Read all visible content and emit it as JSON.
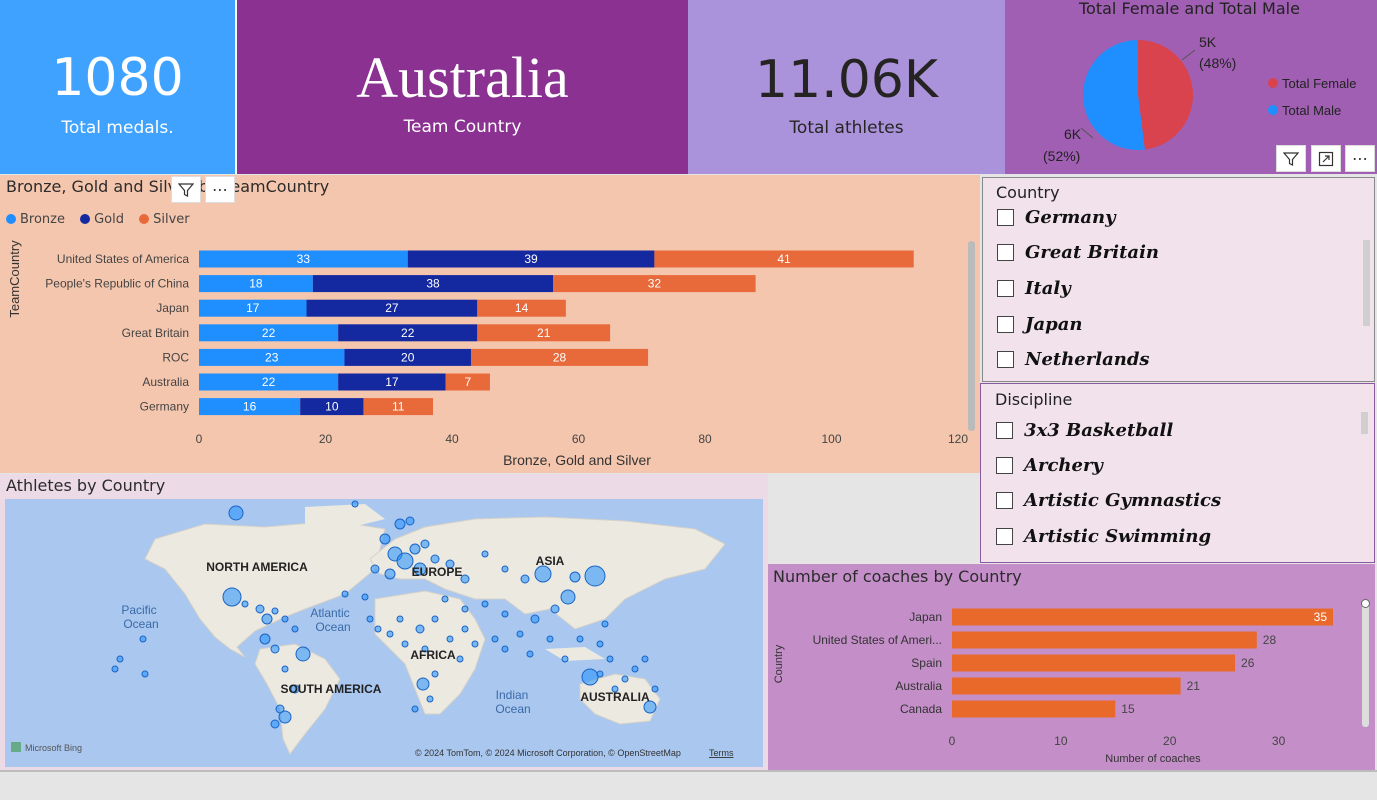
{
  "cards": {
    "medals": {
      "value": "1080",
      "label": "Total medals."
    },
    "team": {
      "value": "Australia",
      "label": "Team Country"
    },
    "athletes": {
      "value": "11.06K",
      "label": "Total athletes"
    }
  },
  "pie": {
    "title": "Total Female and Total Male",
    "female_label_value": "5K",
    "female_label_pct": "(48%)",
    "male_label_value": "6K",
    "male_label_pct": "(52%)",
    "legend_female": "Total Female",
    "legend_male": "Total Male"
  },
  "medals_chart": {
    "title": "Bronze, Gold and Silver by TeamCountry",
    "legend": [
      "Bronze",
      "Gold",
      "Silver"
    ],
    "ylabel": "TeamCountry",
    "xlabel": "Bronze, Gold and Silver"
  },
  "map": {
    "title": "Athletes by Country",
    "labels": {
      "north_america": "NORTH AMERICA",
      "south_america": "SOUTH AMERICA",
      "europe": "EUROPE",
      "asia": "ASIA",
      "africa": "AFRICA",
      "australia": "AUSTRALIA",
      "pacific_1": "Pacific",
      "pacific_2": "Ocean",
      "atlantic_1": "Atlantic",
      "atlantic_2": "Ocean",
      "indian_1": "Indian",
      "indian_2": "Ocean"
    },
    "bing": "Microsoft Bing",
    "copyright": "© 2024 TomTom, © 2024 Microsoft Corporation, © OpenStreetMap",
    "terms": "Terms"
  },
  "country_slicer": {
    "title": "Country",
    "items": [
      "Germany",
      "Great Britain",
      "Italy",
      "Japan",
      "Netherlands"
    ]
  },
  "discipline_slicer": {
    "title": "Discipline",
    "items": [
      "3x3 Basketball",
      "Archery",
      "Artistic Gymnastics",
      "Artistic Swimming"
    ]
  },
  "coaches_chart": {
    "title": "Number of coaches by Country",
    "ylabel": "Country",
    "xlabel": "Number of coaches"
  },
  "colors": {
    "bronze": "#1f8fff",
    "gold": "#1428a0",
    "silver": "#e8693a",
    "female": "#d9434e",
    "male": "#1f8fff",
    "coaches": "#e8692a"
  },
  "chart_data": [
    {
      "type": "bar",
      "orientation": "horizontal",
      "stacked": true,
      "title": "Bronze, Gold and Silver by TeamCountry",
      "xlabel": "Bronze, Gold and Silver",
      "ylabel": "TeamCountry",
      "categories": [
        "United States of America",
        "People's Republic of China",
        "Japan",
        "Great Britain",
        "ROC",
        "Australia",
        "Germany"
      ],
      "series": [
        {
          "name": "Bronze",
          "values": [
            33,
            18,
            17,
            22,
            23,
            22,
            16
          ]
        },
        {
          "name": "Gold",
          "values": [
            39,
            38,
            27,
            22,
            20,
            17,
            10
          ]
        },
        {
          "name": "Silver",
          "values": [
            41,
            32,
            14,
            21,
            28,
            7,
            11
          ]
        }
      ],
      "xlim": [
        0,
        120
      ],
      "xticks": [
        0,
        20,
        40,
        60,
        80,
        100,
        120
      ],
      "legend": "top-left"
    },
    {
      "type": "pie",
      "title": "Total Female and Total Male",
      "labels": [
        "Total Female",
        "Total Male"
      ],
      "values": [
        5,
        6
      ],
      "percent": [
        48,
        52
      ],
      "value_labels": [
        "5K",
        "6K"
      ],
      "legend": "right"
    },
    {
      "type": "bar",
      "orientation": "horizontal",
      "title": "Number of coaches by Country",
      "xlabel": "Number of coaches",
      "ylabel": "Country",
      "categories": [
        "Japan",
        "United States of Ameri...",
        "Spain",
        "Australia",
        "Canada"
      ],
      "values": [
        35,
        28,
        26,
        21,
        15
      ],
      "xlim": [
        0,
        35
      ],
      "xticks": [
        0,
        10,
        20,
        30
      ]
    }
  ]
}
